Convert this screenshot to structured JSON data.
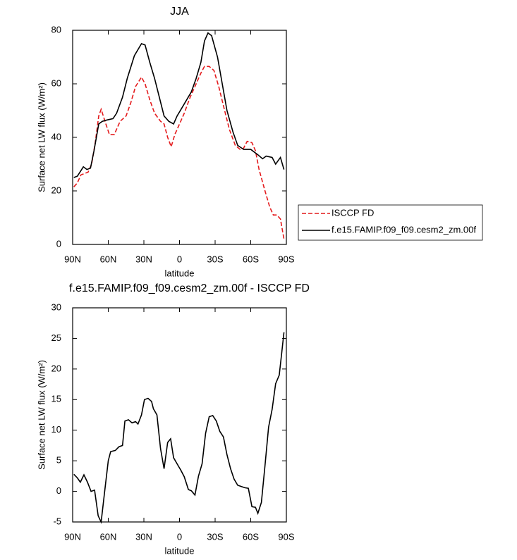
{
  "chart_data": [
    {
      "type": "line",
      "title": "JJA",
      "xlabel": "latitude",
      "ylabel": "Surface net LW flux (W/m²)",
      "xlim": [
        90,
        -90
      ],
      "ylim": [
        0,
        80
      ],
      "xticks": [
        {
          "value": 90,
          "label": "90N"
        },
        {
          "value": 60,
          "label": "60N"
        },
        {
          "value": 30,
          "label": "30N"
        },
        0,
        {
          "value": -30,
          "label": "30S"
        },
        {
          "value": -60,
          "label": "60S"
        },
        {
          "value": -90,
          "label": "90S"
        }
      ],
      "yticks": [
        0,
        20,
        40,
        60,
        80
      ],
      "legend": "outside right",
      "series": [
        {
          "name": "ISCCP FD",
          "color": "#e41a1c",
          "dashed": true,
          "x": [
            89,
            86,
            83,
            77,
            74,
            71,
            68,
            66,
            62,
            59,
            55,
            50,
            45,
            41,
            37,
            32,
            29,
            25,
            21,
            16,
            13,
            10,
            7,
            4,
            0,
            -4,
            -9,
            -14,
            -18,
            -21,
            -25,
            -29,
            -33,
            -38,
            -42,
            -47,
            -51,
            -54,
            -57,
            -61,
            -64,
            -67,
            -72,
            -76,
            -79,
            -82,
            -85,
            -88
          ],
          "values": [
            21.5,
            23,
            26,
            27,
            30,
            38,
            48,
            50.5,
            45,
            41,
            41,
            46,
            48,
            53,
            59,
            62.5,
            60,
            54,
            49,
            46,
            45,
            40,
            36.5,
            41,
            45,
            49,
            55,
            60,
            64,
            66.5,
            66.5,
            65,
            59,
            50,
            43,
            37,
            35.5,
            36,
            38.5,
            38,
            35,
            28,
            20,
            14,
            11,
            11,
            9.5,
            2
          ]
        },
        {
          "name": "f.e15.FAMIP.f09_f09.cesm2_zm.00f",
          "color": "#000000",
          "dashed": false,
          "x": [
            89,
            86,
            81,
            78,
            75,
            72,
            68,
            65,
            61,
            56,
            53,
            48,
            44,
            38,
            32,
            29,
            25,
            21,
            17,
            13,
            9,
            5,
            2,
            -2,
            -6,
            -10,
            -14,
            -18,
            -21,
            -24,
            -27,
            -32,
            -36,
            -40,
            -45,
            -49,
            -54,
            -60,
            -66,
            -70,
            -73,
            -78,
            -81,
            -85,
            -88
          ],
          "values": [
            25,
            25.5,
            29,
            28,
            28.5,
            35,
            45,
            46,
            46.5,
            47,
            49,
            55,
            62,
            70.5,
            75,
            74.5,
            68,
            62,
            55,
            48,
            46,
            45,
            48,
            51,
            54,
            57,
            62,
            68,
            76,
            79,
            78,
            70,
            60,
            50,
            42,
            37,
            35.5,
            35.5,
            33.5,
            32,
            33,
            32.5,
            30,
            32.5,
            28
          ]
        }
      ]
    },
    {
      "type": "line",
      "title": "f.e15.FAMIP.f09_f09.cesm2_zm.00f - ISCCP FD",
      "xlabel": "latitude",
      "ylabel": "Surface net LW flux (W/m²)",
      "xlim": [
        90,
        -90
      ],
      "ylim": [
        -5,
        30
      ],
      "xticks": [
        {
          "value": 90,
          "label": "90N"
        },
        {
          "value": 60,
          "label": "60N"
        },
        {
          "value": 30,
          "label": "30N"
        },
        0,
        {
          "value": -30,
          "label": "30S"
        },
        {
          "value": -60,
          "label": "60S"
        },
        {
          "value": -90,
          "label": "90S"
        }
      ],
      "yticks": [
        -5,
        0,
        5,
        10,
        15,
        20,
        25,
        30
      ],
      "series": [
        {
          "color": "#000000",
          "dashed": false,
          "x": [
            89,
            86,
            83.5,
            80.5,
            77.5,
            74.5,
            71.5,
            68.5,
            66,
            63,
            60,
            58,
            54,
            51,
            48,
            46,
            43,
            40,
            37,
            35,
            32,
            29.5,
            26.5,
            23.5,
            22,
            19,
            16,
            13,
            10,
            7.5,
            5,
            2,
            -1,
            -4,
            -7.5,
            -10,
            -13,
            -16,
            -19,
            -22,
            -25,
            -28,
            -31,
            -34,
            -37,
            -40,
            -43,
            -46,
            -49,
            -52,
            -55,
            -58,
            -61,
            -64,
            -66,
            -69,
            -72,
            -75,
            -78,
            -81,
            -84,
            -86,
            -88
          ],
          "values": [
            2.8,
            2.2,
            1.5,
            2.7,
            1.5,
            0,
            0.2,
            -4,
            -5,
            0,
            5,
            6.5,
            6.7,
            7.3,
            7.5,
            11.5,
            11.7,
            11.2,
            11.4,
            11,
            12.5,
            15,
            15.2,
            14.7,
            13.5,
            12.5,
            7,
            3.7,
            8,
            8.6,
            5.5,
            4.5,
            3.5,
            2.4,
            0.3,
            0.1,
            -0.6,
            2.5,
            4.5,
            9.5,
            12.2,
            12.4,
            11.5,
            9.8,
            8.9,
            6,
            3.7,
            2,
            1,
            0.8,
            0.6,
            0.5,
            -2.5,
            -2.6,
            -3.6,
            -1.8,
            4.2,
            10.5,
            13.4,
            17.6,
            19,
            22.5,
            26
          ]
        }
      ]
    }
  ]
}
